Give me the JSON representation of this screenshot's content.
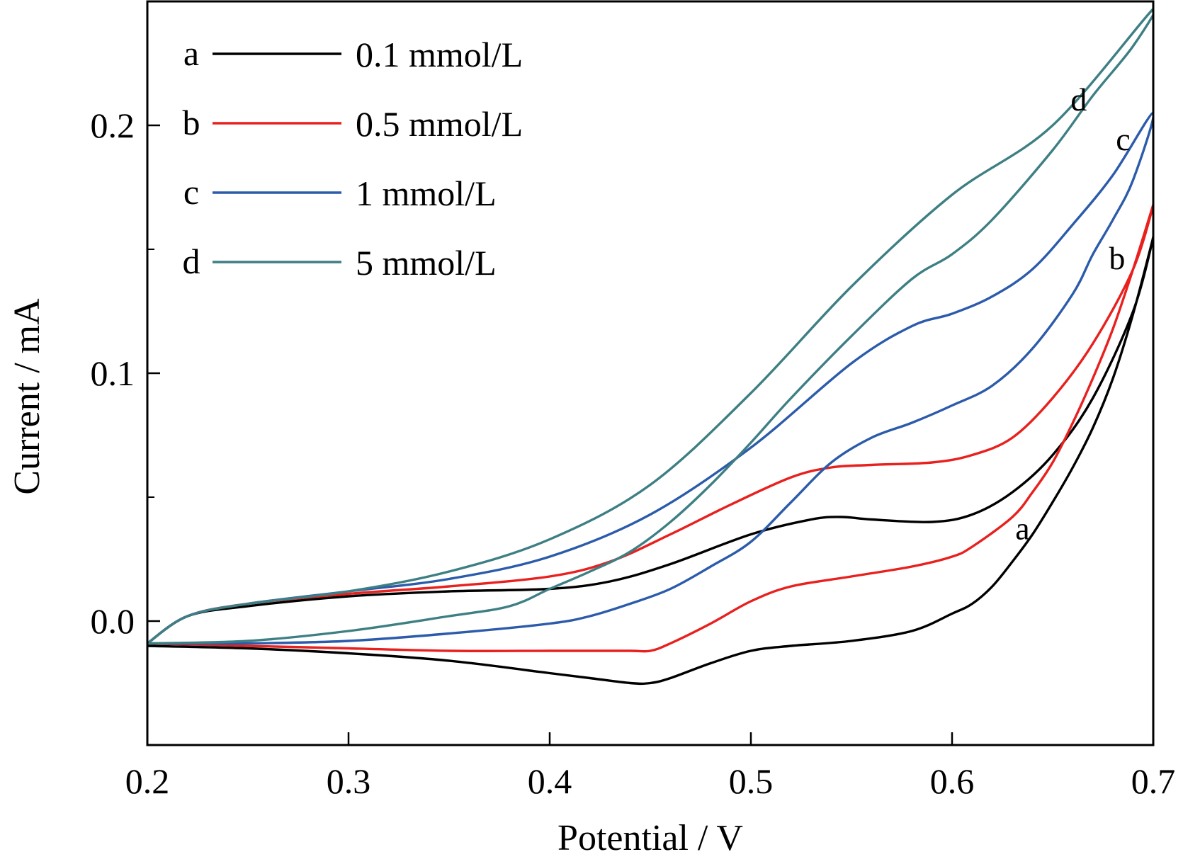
{
  "chart_data": {
    "type": "line",
    "title": "",
    "xlabel": "Potential / V",
    "ylabel": "Current / mA",
    "xlim": [
      0.2,
      0.7
    ],
    "ylim": [
      -0.05,
      0.25
    ],
    "xticks": [
      "0.2",
      "0.3",
      "0.4",
      "0.5",
      "0.6",
      "0.7"
    ],
    "yticks": [
      "0.0",
      "0.1",
      "0.2"
    ],
    "grid": false,
    "legend_position": "top-left",
    "series": [
      {
        "key": "a",
        "name": "0.1 mmol/L",
        "color": "#000000",
        "curve_label": "a",
        "label_at": [
          0.635,
          0.036
        ],
        "x": [
          0.2,
          0.22,
          0.25,
          0.3,
          0.35,
          0.4,
          0.43,
          0.46,
          0.5,
          0.53,
          0.545,
          0.56,
          0.59,
          0.61,
          0.63,
          0.65,
          0.67,
          0.69,
          0.7,
          0.69,
          0.68,
          0.67,
          0.66,
          0.65,
          0.64,
          0.63,
          0.62,
          0.61,
          0.6,
          0.58,
          0.55,
          0.52,
          0.5,
          0.48,
          0.46,
          0.45,
          0.44,
          0.42,
          0.4,
          0.35,
          0.3,
          0.25,
          0.2
        ],
        "y": [
          -0.009,
          0.002,
          0.006,
          0.01,
          0.012,
          0.013,
          0.016,
          0.023,
          0.035,
          0.041,
          0.042,
          0.041,
          0.04,
          0.043,
          0.052,
          0.067,
          0.09,
          0.125,
          0.155,
          0.124,
          0.098,
          0.078,
          0.062,
          0.048,
          0.035,
          0.024,
          0.014,
          0.007,
          0.003,
          -0.004,
          -0.008,
          -0.01,
          -0.012,
          -0.017,
          -0.023,
          -0.025,
          -0.025,
          -0.023,
          -0.021,
          -0.016,
          -0.013,
          -0.011,
          -0.01
        ]
      },
      {
        "key": "b",
        "name": "0.5 mmol/L",
        "color": "#e8201e",
        "curve_label": "b",
        "label_at": [
          0.682,
          0.145
        ],
        "x": [
          0.2,
          0.22,
          0.25,
          0.3,
          0.35,
          0.4,
          0.43,
          0.46,
          0.49,
          0.52,
          0.54,
          0.56,
          0.59,
          0.61,
          0.63,
          0.65,
          0.67,
          0.69,
          0.7,
          0.69,
          0.68,
          0.67,
          0.66,
          0.65,
          0.64,
          0.63,
          0.61,
          0.6,
          0.58,
          0.55,
          0.52,
          0.5,
          0.48,
          0.46,
          0.45,
          0.44,
          0.42,
          0.4,
          0.35,
          0.3,
          0.25,
          0.2
        ],
        "y": [
          -0.009,
          0.002,
          0.007,
          0.011,
          0.014,
          0.018,
          0.024,
          0.035,
          0.047,
          0.058,
          0.062,
          0.063,
          0.064,
          0.067,
          0.074,
          0.09,
          0.112,
          0.142,
          0.168,
          0.142,
          0.118,
          0.098,
          0.08,
          0.064,
          0.052,
          0.042,
          0.03,
          0.026,
          0.022,
          0.018,
          0.014,
          0.008,
          -0.001,
          -0.009,
          -0.012,
          -0.012,
          -0.012,
          -0.012,
          -0.012,
          -0.011,
          -0.01,
          -0.009
        ]
      },
      {
        "key": "c",
        "name": "1 mmol/L",
        "color": "#2b5baa",
        "curve_label": "c",
        "label_at": [
          0.685,
          0.193
        ],
        "x": [
          0.2,
          0.22,
          0.25,
          0.3,
          0.35,
          0.4,
          0.45,
          0.5,
          0.55,
          0.58,
          0.6,
          0.62,
          0.64,
          0.66,
          0.68,
          0.7,
          0.69,
          0.68,
          0.67,
          0.66,
          0.64,
          0.62,
          0.6,
          0.58,
          0.56,
          0.54,
          0.52,
          0.5,
          0.48,
          0.46,
          0.44,
          0.42,
          0.4,
          0.35,
          0.3,
          0.25,
          0.2
        ],
        "y": [
          -0.009,
          0.002,
          0.007,
          0.012,
          0.017,
          0.026,
          0.043,
          0.07,
          0.104,
          0.119,
          0.124,
          0.131,
          0.142,
          0.16,
          0.18,
          0.205,
          0.178,
          0.162,
          0.148,
          0.132,
          0.11,
          0.095,
          0.087,
          0.08,
          0.074,
          0.064,
          0.048,
          0.032,
          0.022,
          0.013,
          0.007,
          0.002,
          -0.001,
          -0.005,
          -0.008,
          -0.009,
          -0.009
        ]
      },
      {
        "key": "d",
        "name": "5 mmol/L",
        "color": "#3e7f84",
        "curve_label": "d",
        "label_at": [
          0.663,
          0.209
        ],
        "x": [
          0.2,
          0.22,
          0.25,
          0.3,
          0.35,
          0.4,
          0.45,
          0.5,
          0.55,
          0.6,
          0.65,
          0.7,
          0.69,
          0.67,
          0.65,
          0.62,
          0.6,
          0.58,
          0.55,
          0.52,
          0.5,
          0.48,
          0.46,
          0.44,
          0.42,
          0.4,
          0.38,
          0.35,
          0.3,
          0.25,
          0.2
        ],
        "y": [
          -0.009,
          0.002,
          0.007,
          0.012,
          0.02,
          0.033,
          0.055,
          0.092,
          0.135,
          0.172,
          0.2,
          0.247,
          0.232,
          0.212,
          0.19,
          0.162,
          0.148,
          0.138,
          0.115,
          0.09,
          0.072,
          0.055,
          0.04,
          0.028,
          0.02,
          0.013,
          0.006,
          0.002,
          -0.004,
          -0.008,
          -0.009
        ]
      }
    ]
  }
}
